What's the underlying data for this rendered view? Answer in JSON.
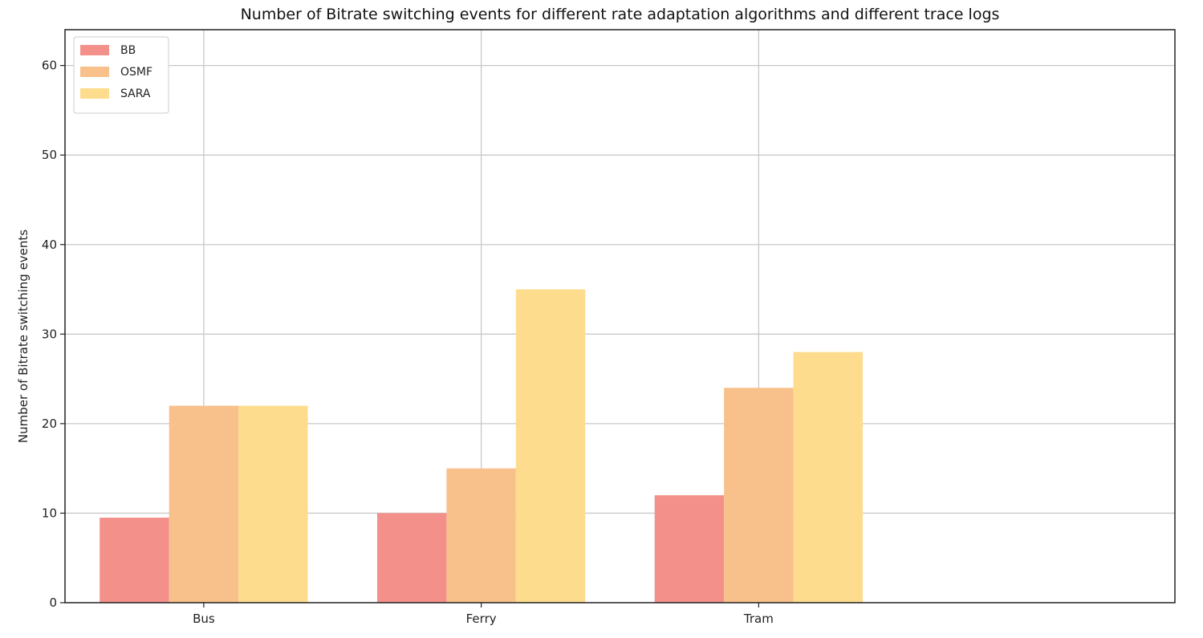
{
  "chart_data": {
    "type": "bar",
    "title": "Number of Bitrate switching events for different rate adaptation algorithms and different trace logs",
    "xlabel": "",
    "ylabel": "Number of Bitrate switching events",
    "categories": [
      "Bus",
      "Ferry",
      "Tram"
    ],
    "series": [
      {
        "name": "BB",
        "color": "#f4908a",
        "values": [
          9.5,
          10,
          12
        ]
      },
      {
        "name": "OSMF",
        "color": "#f8c18b",
        "values": [
          22,
          15,
          24
        ]
      },
      {
        "name": "SARA",
        "color": "#fddc8e",
        "values": [
          22,
          35,
          28
        ]
      }
    ],
    "ylim": [
      0,
      64
    ],
    "yticks": [
      0,
      10,
      20,
      30,
      40,
      50,
      60
    ],
    "grid": true,
    "legend_position": "top-left"
  }
}
